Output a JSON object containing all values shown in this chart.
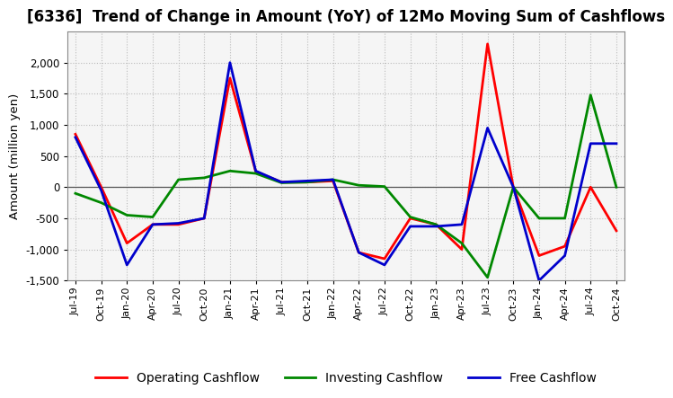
{
  "title": "[6336]  Trend of Change in Amount (YoY) of 12Mo Moving Sum of Cashflows",
  "ylabel": "Amount (million yen)",
  "x_labels": [
    "Jul-19",
    "Oct-19",
    "Jan-20",
    "Apr-20",
    "Jul-20",
    "Oct-20",
    "Jan-21",
    "Apr-21",
    "Jul-21",
    "Oct-21",
    "Jan-22",
    "Apr-22",
    "Jul-22",
    "Oct-22",
    "Jan-23",
    "Apr-23",
    "Jul-23",
    "Oct-23",
    "Jan-24",
    "Apr-24",
    "Jul-24",
    "Oct-24"
  ],
  "operating_cashflow": [
    850,
    0,
    -900,
    -600,
    -600,
    -500,
    1750,
    250,
    80,
    80,
    100,
    -1050,
    -1150,
    -500,
    -600,
    -1000,
    2300,
    0,
    -1100,
    -950,
    0,
    -700
  ],
  "investing_cashflow": [
    -100,
    -250,
    -450,
    -480,
    120,
    150,
    260,
    220,
    70,
    80,
    120,
    30,
    10,
    -480,
    -600,
    -900,
    -1450,
    0,
    -500,
    -500,
    1480,
    0
  ],
  "free_cashflow": [
    800,
    -50,
    -1250,
    -600,
    -580,
    -500,
    2000,
    260,
    80,
    100,
    120,
    -1050,
    -1250,
    -630,
    -630,
    -600,
    950,
    0,
    -1500,
    -1100,
    700,
    700
  ],
  "operating_color": "#ff0000",
  "investing_color": "#008800",
  "free_color": "#0000cc",
  "ylim": [
    -1500,
    2500
  ],
  "yticks": [
    -1500,
    -1000,
    -500,
    0,
    500,
    1000,
    1500,
    2000
  ],
  "background_color": "#ffffff",
  "plot_bg_color": "#f5f5f5",
  "grid_color": "#bbbbbb",
  "title_fontsize": 12,
  "axis_fontsize": 9,
  "legend_fontsize": 10,
  "linewidth": 2.0
}
